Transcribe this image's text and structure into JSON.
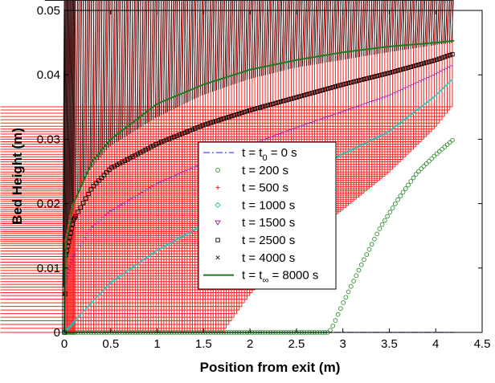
{
  "chart_data": {
    "type": "line",
    "xlabel": "Position from exit (m)",
    "ylabel": "Bed Height (m)",
    "xlim": [
      0,
      4.5
    ],
    "ylim": [
      0,
      0.05
    ],
    "xticks": [
      0,
      0.5,
      1,
      1.5,
      2,
      2.5,
      3,
      3.5,
      4,
      4.5
    ],
    "yticks": [
      0,
      0.01,
      0.02,
      0.03,
      0.04,
      0.05
    ],
    "xtick_labels": [
      "0",
      "0.5",
      "1",
      "1.5",
      "2",
      "2.5",
      "3",
      "3.5",
      "4",
      "4.5"
    ],
    "ytick_labels": [
      "0",
      "0.01",
      "0.02",
      "0.03",
      "0.04",
      "0.05"
    ],
    "grid": false,
    "legend_position": "center",
    "series": [
      {
        "name": "t = t0 = 0 s",
        "label_parts": [
          "t = t",
          "0",
          " = 0 s"
        ],
        "color": "#4b4bff",
        "style": "dashdot",
        "x": [
          0.0,
          4.2
        ],
        "y": [
          0.0,
          0.0
        ]
      },
      {
        "name": "t = 200 s",
        "color": "#2f8f2f",
        "marker": "circle",
        "x": [
          0.0,
          2.85,
          2.9,
          3.0,
          3.2,
          3.4,
          3.6,
          3.8,
          4.0,
          4.2
        ],
        "y": [
          0.0,
          0.0,
          0.0012,
          0.0045,
          0.0105,
          0.0162,
          0.0208,
          0.0248,
          0.0276,
          0.0301
        ]
      },
      {
        "name": "t = 500 s",
        "color": "#ff2020",
        "marker": "plus",
        "x": [
          0.0,
          1.72,
          1.75,
          2.0,
          2.5,
          3.0,
          3.5,
          4.0,
          4.2
        ],
        "y": [
          0.0,
          0.0,
          0.0008,
          0.0058,
          0.0135,
          0.019,
          0.0248,
          0.0318,
          0.0354
        ]
      },
      {
        "name": "t = 1000 s",
        "color": "#2ab7a9",
        "marker": "diamond",
        "x": [
          0.0,
          0.05,
          0.5,
          1.0,
          1.5,
          2.0,
          2.5,
          3.0,
          3.5,
          4.0,
          4.2
        ],
        "y": [
          0.0,
          0.0005,
          0.0075,
          0.0125,
          0.0165,
          0.0205,
          0.024,
          0.0275,
          0.031,
          0.0365,
          0.0393
        ]
      },
      {
        "name": "t = 1500 s",
        "color": "#a3169e",
        "marker": "triangle-down",
        "x": [
          0.0,
          0.02,
          0.1,
          0.3,
          0.5,
          1.0,
          1.5,
          2.0,
          2.5,
          3.0,
          3.5,
          4.0,
          4.2
        ],
        "y": [
          0.0,
          0.0075,
          0.0115,
          0.016,
          0.0185,
          0.0228,
          0.026,
          0.0288,
          0.0315,
          0.034,
          0.0365,
          0.0398,
          0.0413
        ]
      },
      {
        "name": "t = 2500 s",
        "color": "#000000",
        "marker": "square",
        "x": [
          0.0,
          0.02,
          0.1,
          0.3,
          0.5,
          1.0,
          1.5,
          2.0,
          2.5,
          3.0,
          3.5,
          4.0,
          4.2
        ],
        "y": [
          0.0,
          0.012,
          0.0175,
          0.0225,
          0.0255,
          0.0293,
          0.0322,
          0.0345,
          0.0365,
          0.0385,
          0.0403,
          0.0423,
          0.0433
        ]
      },
      {
        "name": "t = 4000 s",
        "color": "#1a1a1a",
        "marker": "x",
        "x": [
          0.0,
          0.02,
          0.1,
          0.3,
          0.5,
          1.0,
          1.5,
          2.0,
          2.5,
          3.0,
          3.5,
          4.0,
          4.2
        ],
        "y": [
          0.0,
          0.0135,
          0.0195,
          0.025,
          0.0285,
          0.033,
          0.0365,
          0.039,
          0.0408,
          0.042,
          0.0432,
          0.0443,
          0.0447
        ]
      },
      {
        "name": "t = t∞ = 8000 s",
        "label_parts": [
          "t = t",
          "∞",
          " = 8000 s"
        ],
        "color": "#1f7a1f",
        "style": "solid",
        "x": [
          0.0,
          0.02,
          0.1,
          0.3,
          0.5,
          1.0,
          1.5,
          2.0,
          2.5,
          3.0,
          3.5,
          4.0,
          4.2
        ],
        "y": [
          0.0,
          0.014,
          0.02,
          0.0265,
          0.03,
          0.0355,
          0.0385,
          0.0408,
          0.0423,
          0.0435,
          0.0444,
          0.045,
          0.0453
        ]
      }
    ]
  }
}
